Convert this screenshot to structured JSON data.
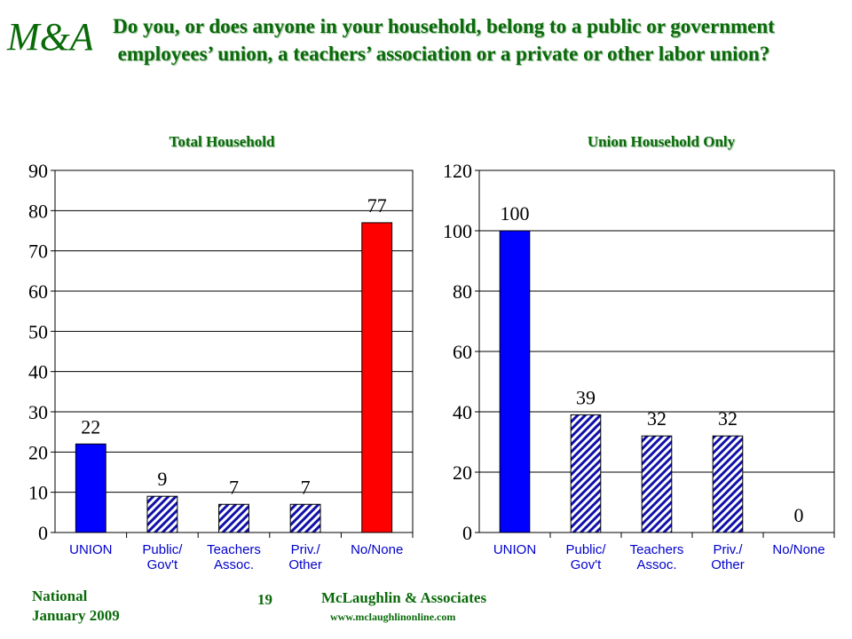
{
  "logo": {
    "text": "M&A"
  },
  "title": "Do you, or does anyone in your household, belong to a public or government employees’ union, a teachers’ association or a private or other labor union?",
  "chart_data": [
    {
      "type": "bar",
      "title": "Total Household",
      "categories": [
        "UNION",
        "Public/\nGov't",
        "Teachers\nAssoc.",
        "Priv./\nOther",
        "No/None"
      ],
      "values": [
        22,
        9,
        7,
        7,
        77
      ],
      "ylim": [
        0,
        90
      ],
      "yticks": [
        0,
        10,
        20,
        30,
        40,
        50,
        60,
        70,
        80,
        90
      ],
      "grid": true,
      "colors": [
        "#0000ff",
        "hatch",
        "hatch",
        "hatch",
        "#ff0000"
      ]
    },
    {
      "type": "bar",
      "title": "Union Household Only",
      "categories": [
        "UNION",
        "Public/\nGov't",
        "Teachers\nAssoc.",
        "Priv./\nOther",
        "No/None"
      ],
      "values": [
        100,
        39,
        32,
        32,
        0
      ],
      "ylim": [
        0,
        120
      ],
      "yticks": [
        0,
        20,
        40,
        60,
        80,
        100,
        120
      ],
      "grid": true,
      "colors": [
        "#0000ff",
        "hatch",
        "hatch",
        "hatch",
        "#ff0000"
      ]
    }
  ],
  "footer": {
    "left1": "National",
    "left2": "January 2009",
    "page": "19",
    "org": "McLaughlin & Associates",
    "url": "www.mclaughlinonline.com"
  }
}
